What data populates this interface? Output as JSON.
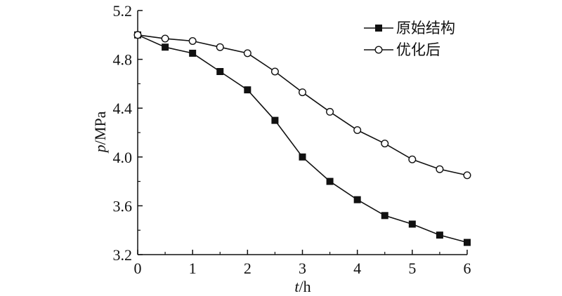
{
  "chart_data": {
    "type": "line",
    "xlabel": {
      "var": "t",
      "unit": "/h"
    },
    "ylabel": {
      "var": "p",
      "unit": "/MPa"
    },
    "xlim": [
      0,
      6
    ],
    "ylim": [
      3.2,
      5.2
    ],
    "xticks": [
      "0",
      "1",
      "2",
      "3",
      "4",
      "5",
      "6"
    ],
    "yticks": [
      "3.2",
      "3.6",
      "4.0",
      "4.4",
      "4.8",
      "5.2"
    ],
    "grid": false,
    "legend": "top-right",
    "x": [
      0,
      0.5,
      1,
      1.5,
      2,
      2.5,
      3,
      3.5,
      4,
      4.5,
      5,
      5.5,
      6
    ],
    "series": [
      {
        "name": "原始结构",
        "marker": "filled-square",
        "values": [
          5.0,
          4.9,
          4.85,
          4.7,
          4.55,
          4.3,
          4.0,
          3.8,
          3.65,
          3.52,
          3.45,
          3.36,
          3.3
        ]
      },
      {
        "name": "优化后",
        "marker": "open-circle",
        "values": [
          5.0,
          4.97,
          4.95,
          4.9,
          4.85,
          4.7,
          4.53,
          4.37,
          4.22,
          4.11,
          3.98,
          3.9,
          3.85
        ]
      }
    ]
  }
}
